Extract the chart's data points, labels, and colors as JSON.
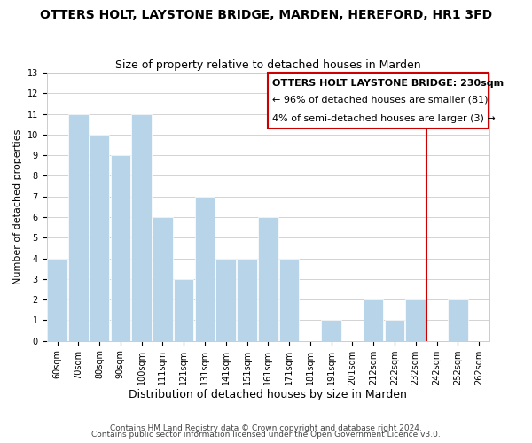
{
  "title": "OTTERS HOLT, LAYSTONE BRIDGE, MARDEN, HEREFORD, HR1 3FD",
  "subtitle": "Size of property relative to detached houses in Marden",
  "xlabel": "Distribution of detached houses by size in Marden",
  "ylabel": "Number of detached properties",
  "categories": [
    "60sqm",
    "70sqm",
    "80sqm",
    "90sqm",
    "100sqm",
    "111sqm",
    "121sqm",
    "131sqm",
    "141sqm",
    "151sqm",
    "161sqm",
    "171sqm",
    "181sqm",
    "191sqm",
    "201sqm",
    "212sqm",
    "222sqm",
    "232sqm",
    "242sqm",
    "252sqm",
    "262sqm"
  ],
  "values": [
    4,
    11,
    10,
    9,
    11,
    6,
    3,
    7,
    4,
    4,
    6,
    4,
    0,
    1,
    0,
    2,
    1,
    2,
    0,
    2,
    0
  ],
  "bar_color": "#b8d4e8",
  "vline_x_index": 17,
  "vline_color": "#cc0000",
  "ylim": [
    0,
    13
  ],
  "yticks": [
    0,
    1,
    2,
    3,
    4,
    5,
    6,
    7,
    8,
    9,
    10,
    11,
    12,
    13
  ],
  "annotation_title": "OTTERS HOLT LAYSTONE BRIDGE: 230sqm",
  "annotation_line1": "← 96% of detached houses are smaller (81)",
  "annotation_line2": "4% of semi-detached houses are larger (3) →",
  "footer1": "Contains HM Land Registry data © Crown copyright and database right 2024.",
  "footer2": "Contains public sector information licensed under the Open Government Licence v3.0.",
  "title_fontsize": 10,
  "subtitle_fontsize": 9,
  "xlabel_fontsize": 9,
  "ylabel_fontsize": 8,
  "tick_fontsize": 7,
  "annotation_fontsize": 8,
  "footer_fontsize": 6.5
}
